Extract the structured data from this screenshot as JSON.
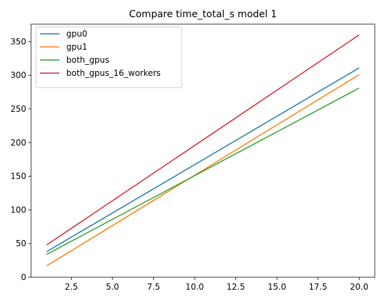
{
  "chart_data": {
    "type": "line",
    "title": "Compare time_total_s model 1",
    "xlabel": "",
    "ylabel": "",
    "xlim": [
      0.05,
      20.95
    ],
    "ylim": [
      0,
      376
    ],
    "xticks": [
      2.5,
      5.0,
      7.5,
      10.0,
      12.5,
      15.0,
      17.5,
      20.0
    ],
    "xtick_labels": [
      "2.5",
      "5.0",
      "7.5",
      "10.0",
      "12.5",
      "15.0",
      "17.5",
      "20.0"
    ],
    "yticks": [
      0,
      50,
      100,
      150,
      200,
      250,
      300,
      350
    ],
    "ytick_labels": [
      "0",
      "50",
      "100",
      "150",
      "200",
      "250",
      "300",
      "350"
    ],
    "grid": false,
    "legend_position": "top-left",
    "series": [
      {
        "name": "gpu0",
        "color": "#1f77b4",
        "x": [
          1,
          20
        ],
        "y": [
          38,
          311
        ]
      },
      {
        "name": "gpu1",
        "color": "#ff7f0e",
        "x": [
          1,
          20
        ],
        "y": [
          17,
          301
        ]
      },
      {
        "name": "both_gpus",
        "color": "#2ca02c",
        "x": [
          1,
          20
        ],
        "y": [
          34,
          281
        ]
      },
      {
        "name": "both_gpus_16_workers",
        "color": "#d62728",
        "x": [
          1,
          20
        ],
        "y": [
          48,
          360
        ]
      }
    ]
  }
}
